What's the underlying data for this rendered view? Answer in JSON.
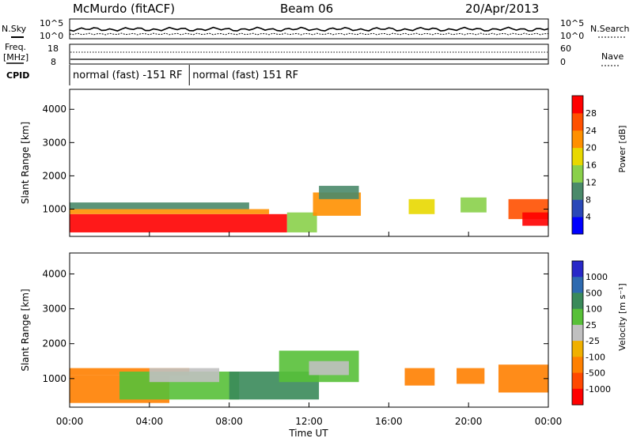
{
  "header": {
    "site": "McMurdo (fitACF)",
    "beam": "Beam 06",
    "date": "20/Apr/2013"
  },
  "noise_panel": {
    "left_label": "N.Sky",
    "right_label": "N.Search",
    "ticks": [
      "10^5",
      "10^0"
    ]
  },
  "freq_panel": {
    "left_label_1": "Freq.",
    "left_label_2": "[MHz]",
    "right_label": "Nave",
    "left_ticks": [
      "18",
      "8"
    ],
    "right_ticks": [
      "60",
      "0"
    ]
  },
  "cpid": {
    "label": "CPID",
    "segments": [
      {
        "label": "normal (fast) -151 RF",
        "start_hour": 0,
        "end_hour": 6
      },
      {
        "label": "normal (fast) 151 RF",
        "start_hour": 6,
        "end_hour": 24
      }
    ]
  },
  "x_axis": {
    "title": "Time UT",
    "ticks": [
      "00:00",
      "04:00",
      "08:00",
      "12:00",
      "16:00",
      "20:00",
      "00:00"
    ]
  },
  "chart_data": [
    {
      "type": "heatmap",
      "name": "power-panel",
      "ylabel": "Slant Range [km]",
      "xlabel": "",
      "x_hours_range": [
        0,
        24
      ],
      "ylim": [
        180,
        4600
      ],
      "y_ticks": [
        1000,
        2000,
        3000,
        4000
      ],
      "colorbar": {
        "label": "Power [dB]",
        "ticks": [
          4,
          8,
          12,
          16,
          20,
          24,
          28
        ],
        "colors": [
          "#0000ff",
          "#2a48b8",
          "#4a8a6a",
          "#8ad04a",
          "#e8d800",
          "#ff9000",
          "#ff5000",
          "#ff0000"
        ]
      },
      "regions": [
        {
          "t0": 0.0,
          "t1": 10.9,
          "r0": 300,
          "r1": 850,
          "value": 28
        },
        {
          "t0": 0.0,
          "t1": 10.0,
          "r0": 850,
          "r1": 1000,
          "value": 20
        },
        {
          "t0": 0.0,
          "t1": 9.0,
          "r0": 1000,
          "r1": 1200,
          "value": 8
        },
        {
          "t0": 10.9,
          "t1": 12.4,
          "r0": 300,
          "r1": 900,
          "value": 12
        },
        {
          "t0": 12.2,
          "t1": 14.6,
          "r0": 800,
          "r1": 1500,
          "value": 20
        },
        {
          "t0": 12.5,
          "t1": 14.5,
          "r0": 1300,
          "r1": 1700,
          "value": 8
        },
        {
          "t0": 17.0,
          "t1": 18.3,
          "r0": 850,
          "r1": 1300,
          "value": 16
        },
        {
          "t0": 19.6,
          "t1": 20.9,
          "r0": 900,
          "r1": 1350,
          "value": 12
        },
        {
          "t0": 22.0,
          "t1": 24.0,
          "r0": 700,
          "r1": 1300,
          "value": 24
        },
        {
          "t0": 22.7,
          "t1": 24.0,
          "r0": 500,
          "r1": 900,
          "value": 28
        }
      ]
    },
    {
      "type": "heatmap",
      "name": "velocity-panel",
      "ylabel": "Slant Range [km]",
      "xlabel": "Time UT",
      "x_hours_range": [
        0,
        24
      ],
      "ylim": [
        180,
        4600
      ],
      "y_ticks": [
        1000,
        2000,
        3000,
        4000
      ],
      "colorbar": {
        "label": "Velocity [m s⁻¹]",
        "ticks": [
          1000,
          500,
          100,
          25,
          -25,
          -100,
          -500,
          -1000
        ],
        "colors": [
          "#2828c8",
          "#2e6ab0",
          "#3a8a5a",
          "#58c038",
          "#c0c0c0",
          "#f0b000",
          "#ff8000",
          "#ff4800",
          "#ff0000"
        ]
      },
      "regions": [
        {
          "t0": 0.0,
          "t1": 5.0,
          "r0": 300,
          "r1": 1100,
          "value": -300
        },
        {
          "t0": 0.0,
          "t1": 6.0,
          "r0": 1100,
          "r1": 1300,
          "value": -200
        },
        {
          "t0": 2.5,
          "t1": 8.5,
          "r0": 400,
          "r1": 1200,
          "value": 50
        },
        {
          "t0": 4.0,
          "t1": 7.5,
          "r0": 900,
          "r1": 1300,
          "value": 0
        },
        {
          "t0": 8.0,
          "t1": 12.5,
          "r0": 400,
          "r1": 1200,
          "value": 200
        },
        {
          "t0": 10.5,
          "t1": 14.5,
          "r0": 900,
          "r1": 1800,
          "value": 80
        },
        {
          "t0": 12.0,
          "t1": 14.0,
          "r0": 1100,
          "r1": 1500,
          "value": 0
        },
        {
          "t0": 16.8,
          "t1": 18.3,
          "r0": 800,
          "r1": 1300,
          "value": -200
        },
        {
          "t0": 19.4,
          "t1": 20.8,
          "r0": 850,
          "r1": 1300,
          "value": -300
        },
        {
          "t0": 21.5,
          "t1": 24.0,
          "r0": 600,
          "r1": 1400,
          "value": -250
        }
      ]
    }
  ]
}
